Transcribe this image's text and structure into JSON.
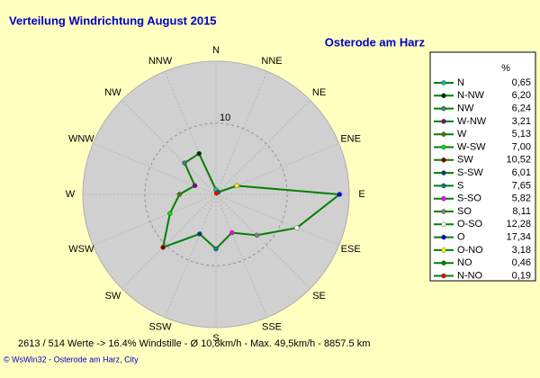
{
  "chart_data": {
    "type": "radar",
    "title": "Verteilung Windrichtung    August 2015",
    "subtitle": "Osterode am Harz",
    "categories": [
      "N",
      "NNE",
      "NE",
      "ENE",
      "E",
      "ESE",
      "SE",
      "SSE",
      "S",
      "SSW",
      "SW",
      "WSW",
      "W",
      "WNW",
      "NW",
      "NNW"
    ],
    "legend_title": "%",
    "points": [
      "N",
      "N-NW",
      "NW",
      "W-NW",
      "W",
      "W-SW",
      "SW",
      "S-SW",
      "S",
      "S-SO",
      "SO",
      "O-SO",
      "O",
      "O-NO",
      "NO",
      "N-NO"
    ],
    "values": [
      0.65,
      6.2,
      6.24,
      3.21,
      5.13,
      7.0,
      10.52,
      6.01,
      7.65,
      5.82,
      8.11,
      12.28,
      17.34,
      3.18,
      0.46,
      0.19
    ],
    "value_labels": [
      "0,65",
      "6,20",
      "6,24",
      "3,21",
      "5,13",
      "7,00",
      "10,52",
      "6,01",
      "7,65",
      "5,82",
      "8,11",
      "12,28",
      "17,34",
      "3,18",
      "0,46",
      "0,19"
    ],
    "colors": [
      "#00c0c0",
      "#003000",
      "#408080",
      "#800080",
      "#408000",
      "#00e000",
      "#800000",
      "#004080",
      "#008080",
      "#ff00ff",
      "#808080",
      "#ffffff",
      "#0000ff",
      "#ffff00",
      "#008000",
      "#ff0000"
    ],
    "line_color": "#008000",
    "ylim": [
      0,
      18.7
    ],
    "yticks": [
      10
    ],
    "grid": true,
    "footer_stats": "2613 / 514 Werte  -> 16.4% Windstille  -  Ø 10,8km/h  -  Max. 49,5km/h  -  8857.5 km",
    "copyright": "© WsWin32  -  Osterode am Harz, City"
  }
}
